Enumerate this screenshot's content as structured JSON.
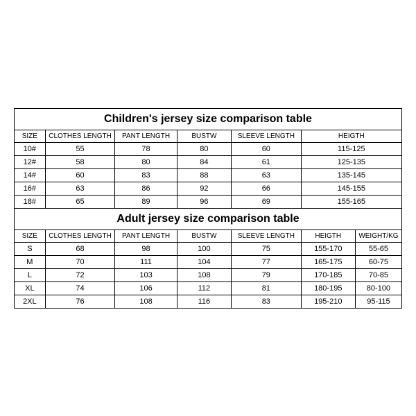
{
  "children_table": {
    "title": "Children's jersey size comparison table",
    "headers": {
      "size": "SIZE",
      "clothes_length": "CLOTHES LENGTH",
      "pant_length": "PANT LENGTH",
      "bustw": "BUSTW",
      "sleeve_length": "SLEEVE LENGTH",
      "heigth": "HEIGTH"
    },
    "rows": [
      {
        "size": "10#",
        "clothes_length": "55",
        "pant_length": "78",
        "bustw": "80",
        "sleeve_length": "60",
        "heigth": "115-125"
      },
      {
        "size": "12#",
        "clothes_length": "58",
        "pant_length": "80",
        "bustw": "84",
        "sleeve_length": "61",
        "heigth": "125-135"
      },
      {
        "size": "14#",
        "clothes_length": "60",
        "pant_length": "83",
        "bustw": "88",
        "sleeve_length": "63",
        "heigth": "135-145"
      },
      {
        "size": "16#",
        "clothes_length": "63",
        "pant_length": "86",
        "bustw": "92",
        "sleeve_length": "66",
        "heigth": "145-155"
      },
      {
        "size": "18#",
        "clothes_length": "65",
        "pant_length": "89",
        "bustw": "96",
        "sleeve_length": "69",
        "heigth": "155-165"
      }
    ]
  },
  "adult_table": {
    "title": "Adult jersey size comparison table",
    "headers": {
      "size": "SIZE",
      "clothes_length": "CLOTHES LENGTH",
      "pant_length": "PANT LENGTH",
      "bustw": "BUSTW",
      "sleeve_length": "SLEEVE LENGTH",
      "heigth": "HEIGTH",
      "weight": "WEIGHT/KG"
    },
    "rows": [
      {
        "size": "S",
        "clothes_length": "68",
        "pant_length": "98",
        "bustw": "100",
        "sleeve_length": "75",
        "heigth": "155-170",
        "weight": "55-65"
      },
      {
        "size": "M",
        "clothes_length": "70",
        "pant_length": "111",
        "bustw": "104",
        "sleeve_length": "77",
        "heigth": "165-175",
        "weight": "60-75"
      },
      {
        "size": "L",
        "clothes_length": "72",
        "pant_length": "103",
        "bustw": "108",
        "sleeve_length": "79",
        "heigth": "170-185",
        "weight": "70-85"
      },
      {
        "size": "XL",
        "clothes_length": "74",
        "pant_length": "106",
        "bustw": "112",
        "sleeve_length": "81",
        "heigth": "180-195",
        "weight": "80-100"
      },
      {
        "size": "2XL",
        "clothes_length": "76",
        "pant_length": "108",
        "bustw": "116",
        "sleeve_length": "83",
        "heigth": "195-210",
        "weight": "95-115"
      }
    ]
  },
  "styling": {
    "border_color": "#000000",
    "background_color": "#ffffff",
    "title_fontsize": 16,
    "cell_fontsize": 11,
    "header_fontsize": 10,
    "font_family": "Arial"
  }
}
